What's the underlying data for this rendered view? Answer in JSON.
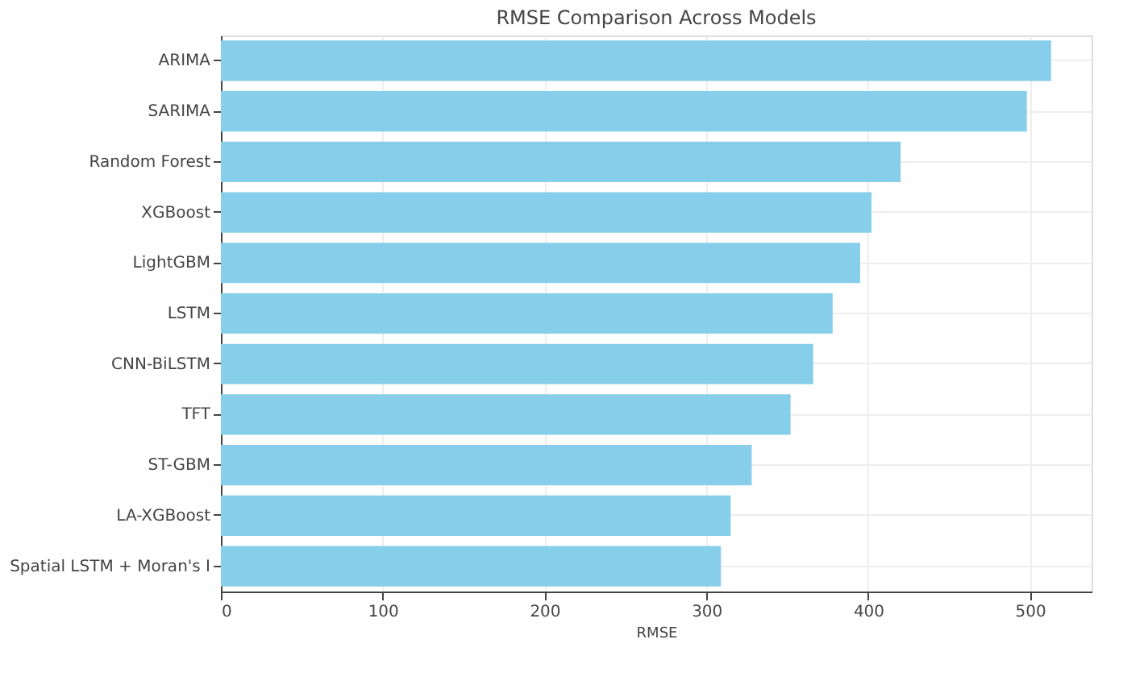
{
  "chart_data": {
    "type": "bar",
    "orientation": "horizontal",
    "title": "RMSE Comparison Across Models",
    "xlabel": "RMSE",
    "categories": [
      "ARIMA",
      "SARIMA",
      "Random Forest",
      "XGBoost",
      "LightGBM",
      "LSTM",
      "CNN-BiLSTM",
      "TFT",
      "ST-GBM",
      "LA-XGBoost",
      "Spatial LSTM + Moran's I"
    ],
    "values": [
      513,
      498,
      420,
      402,
      395,
      378,
      366,
      352,
      328,
      315,
      309
    ],
    "color": "#87ceeb",
    "xlim": [
      0,
      538
    ],
    "xticks": [
      0,
      100,
      200,
      300,
      400,
      500
    ],
    "grid": true
  }
}
